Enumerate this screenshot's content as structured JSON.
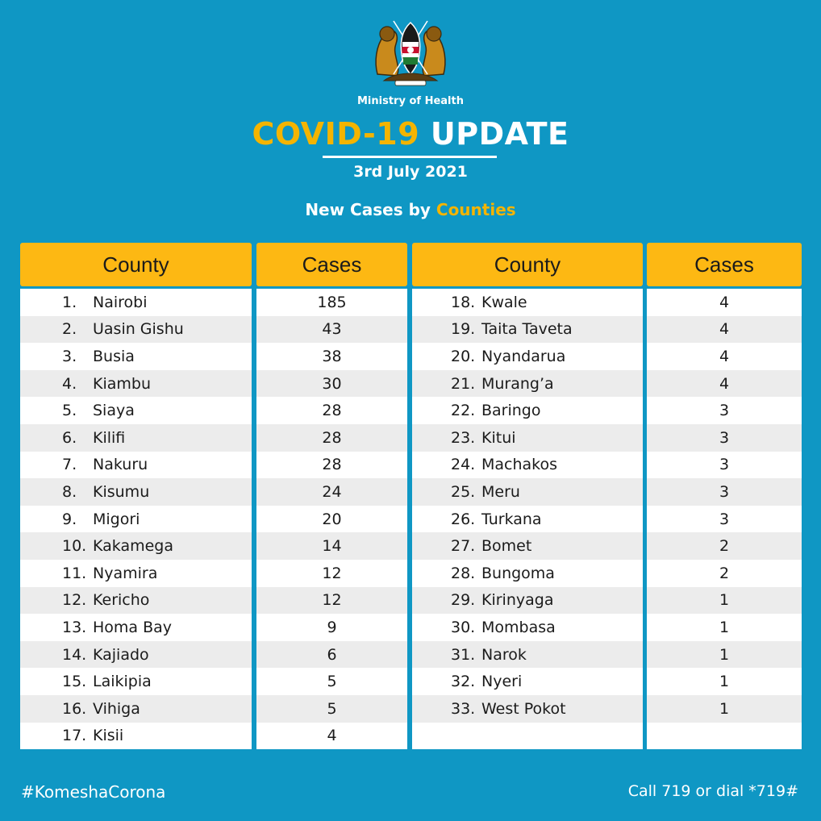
{
  "header": {
    "ministry": "Ministry of Health",
    "title_part1": "COVID-19",
    "title_part2": "UPDATE",
    "date": "3rd July 2021",
    "subtitle_part1": "New Cases by",
    "subtitle_part2": "Counties"
  },
  "colors": {
    "background": "#0f97c4",
    "accent": "#fdb813",
    "title_accent": "#f4b400"
  },
  "table": {
    "col_county": "County",
    "col_cases": "Cases",
    "left": [
      {
        "rank": "1.",
        "county": "Nairobi",
        "cases": "185"
      },
      {
        "rank": "2.",
        "county": "Uasin Gishu",
        "cases": "43"
      },
      {
        "rank": "3.",
        "county": "Busia",
        "cases": "38"
      },
      {
        "rank": "4.",
        "county": "Kiambu",
        "cases": "30"
      },
      {
        "rank": "5.",
        "county": "Siaya",
        "cases": "28"
      },
      {
        "rank": "6.",
        "county": "Kilifi",
        "cases": "28"
      },
      {
        "rank": "7.",
        "county": "Nakuru",
        "cases": "28"
      },
      {
        "rank": "8.",
        "county": "Kisumu",
        "cases": "24"
      },
      {
        "rank": "9.",
        "county": "Migori",
        "cases": "20"
      },
      {
        "rank": "10.",
        "county": "Kakamega",
        "cases": "14"
      },
      {
        "rank": "11.",
        "county": "Nyamira",
        "cases": "12"
      },
      {
        "rank": "12.",
        "county": "Kericho",
        "cases": "12"
      },
      {
        "rank": "13.",
        "county": "Homa Bay",
        "cases": "9"
      },
      {
        "rank": "14.",
        "county": "Kajiado",
        "cases": "6"
      },
      {
        "rank": "15.",
        "county": "Laikipia",
        "cases": "5"
      },
      {
        "rank": "16.",
        "county": "Vihiga",
        "cases": "5"
      },
      {
        "rank": "17.",
        "county": "Kisii",
        "cases": "4"
      }
    ],
    "right": [
      {
        "rank": "18.",
        "county": "Kwale",
        "cases": "4"
      },
      {
        "rank": "19.",
        "county": "Taita Taveta",
        "cases": "4"
      },
      {
        "rank": "20.",
        "county": "Nyandarua",
        "cases": "4"
      },
      {
        "rank": "21.",
        "county": "Murang’a",
        "cases": "4"
      },
      {
        "rank": "22.",
        "county": "Baringo",
        "cases": "3"
      },
      {
        "rank": "23.",
        "county": "Kitui",
        "cases": "3"
      },
      {
        "rank": "24.",
        "county": "Machakos",
        "cases": "3"
      },
      {
        "rank": "25.",
        "county": "Meru",
        "cases": "3"
      },
      {
        "rank": "26.",
        "county": "Turkana",
        "cases": "3"
      },
      {
        "rank": "27.",
        "county": "Bomet",
        "cases": "2"
      },
      {
        "rank": "28.",
        "county": "Bungoma",
        "cases": "2"
      },
      {
        "rank": "29.",
        "county": "Kirinyaga",
        "cases": "1"
      },
      {
        "rank": "30.",
        "county": "Mombasa",
        "cases": "1"
      },
      {
        "rank": "31.",
        "county": "Narok",
        "cases": "1"
      },
      {
        "rank": "32.",
        "county": "Nyeri",
        "cases": "1"
      },
      {
        "rank": "33.",
        "county": "West Pokot",
        "cases": "1"
      },
      {
        "rank": "",
        "county": "",
        "cases": ""
      }
    ]
  },
  "footer": {
    "hashtag": "#KomeshaCorona",
    "hotline": "Call 719 or dial *719#"
  }
}
